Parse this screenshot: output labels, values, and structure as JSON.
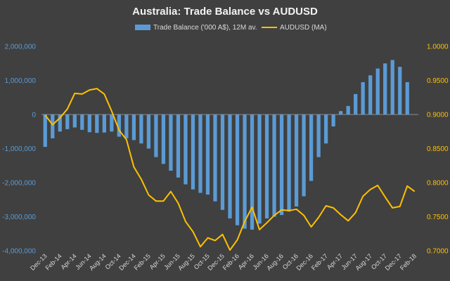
{
  "chart_data": {
    "type": "bar",
    "title": "Australia: Trade Balance vs AUDUSD",
    "categories": [
      "Dec-13",
      "Jan-14",
      "Feb-14",
      "Mar-14",
      "Apr-14",
      "May-14",
      "Jun-14",
      "Jul-14",
      "Aug-14",
      "Sep-14",
      "Oct-14",
      "Nov-14",
      "Dec-14",
      "Jan-15",
      "Feb-15",
      "Mar-15",
      "Apr-15",
      "May-15",
      "Jun-15",
      "Jul-15",
      "Aug-15",
      "Sep-15",
      "Oct-15",
      "Nov-15",
      "Dec-15",
      "Jan-16",
      "Feb-16",
      "Mar-16",
      "Apr-16",
      "May-16",
      "Jun-16",
      "Jul-16",
      "Aug-16",
      "Sep-16",
      "Oct-16",
      "Nov-16",
      "Dec-16",
      "Jan-17",
      "Feb-17",
      "Mar-17",
      "Apr-17",
      "May-17",
      "Jun-17",
      "Jul-17",
      "Aug-17",
      "Sep-17",
      "Oct-17",
      "Nov-17",
      "Dec-17",
      "Jan-18",
      "Feb-18"
    ],
    "x_tick_labels": [
      "Dec-13",
      "Feb-14",
      "Apr-14",
      "Jun-14",
      "Aug-14",
      "Oct-14",
      "Dec-14",
      "Feb-15",
      "Apr-15",
      "Jun-15",
      "Aug-15",
      "Oct-15",
      "Dec-15",
      "Feb-16",
      "Apr-16",
      "Jun-16",
      "Aug-16",
      "Oct-16",
      "Dec-16",
      "Feb-17",
      "Apr-17",
      "Jun-17",
      "Aug-17",
      "Oct-17",
      "Dec-17",
      "Feb-18"
    ],
    "series": [
      {
        "name": "Trade Balance ('000 A$), 12M av.",
        "type": "bar",
        "axis": "left",
        "color": "#5b9bd5",
        "values": [
          -950000,
          -700000,
          -500000,
          -430000,
          -380000,
          -450000,
          -520000,
          -540000,
          -530000,
          -500000,
          -650000,
          -700000,
          -750000,
          -850000,
          -1000000,
          -1250000,
          -1450000,
          -1650000,
          -1850000,
          -2050000,
          -2200000,
          -2300000,
          -2350000,
          -2550000,
          -2800000,
          -3050000,
          -3250000,
          -3350000,
          -3380000,
          -3200000,
          -3050000,
          -3000000,
          -2950000,
          -2850000,
          -2700000,
          -2400000,
          -1950000,
          -1250000,
          -850000,
          -350000,
          100000,
          250000,
          600000,
          950000,
          1150000,
          1350000,
          1500000,
          1600000,
          1400000,
          950000,
          null
        ]
      },
      {
        "name": "AUDUSD (MA)",
        "type": "line",
        "axis": "right",
        "color": "#ffc000",
        "values": [
          0.899,
          0.885,
          0.895,
          0.908,
          0.931,
          0.93,
          0.936,
          0.938,
          0.93,
          0.905,
          0.877,
          0.863,
          0.823,
          0.805,
          0.782,
          0.773,
          0.773,
          0.787,
          0.77,
          0.743,
          0.728,
          0.706,
          0.719,
          0.715,
          0.724,
          0.701,
          0.716,
          0.743,
          0.764,
          0.731,
          0.741,
          0.752,
          0.76,
          0.759,
          0.761,
          0.752,
          0.735,
          0.749,
          0.766,
          0.763,
          0.753,
          0.744,
          0.756,
          0.78,
          0.79,
          0.796,
          0.779,
          0.763,
          0.765,
          0.795,
          0.787
        ]
      }
    ],
    "y_left": {
      "min": -4000000,
      "max": 2000000,
      "ticks": [
        2000000,
        1000000,
        0,
        -1000000,
        -2000000,
        -3000000,
        -4000000
      ],
      "tick_labels": [
        "2,000,000",
        "1,000,000",
        "0",
        "-1,000,000",
        "-2,000,000",
        "-3,000,000",
        "-4,000,000"
      ],
      "label_color": "#5b9bd5"
    },
    "y_right": {
      "min": 0.7,
      "max": 1.0,
      "ticks": [
        1.0,
        0.95,
        0.9,
        0.85,
        0.8,
        0.75,
        0.7
      ],
      "tick_labels": [
        "1.0000",
        "0.9500",
        "0.9000",
        "0.8500",
        "0.8000",
        "0.7500",
        "0.7000"
      ],
      "label_color": "#ffc000"
    },
    "grid": false,
    "legend": "top"
  }
}
